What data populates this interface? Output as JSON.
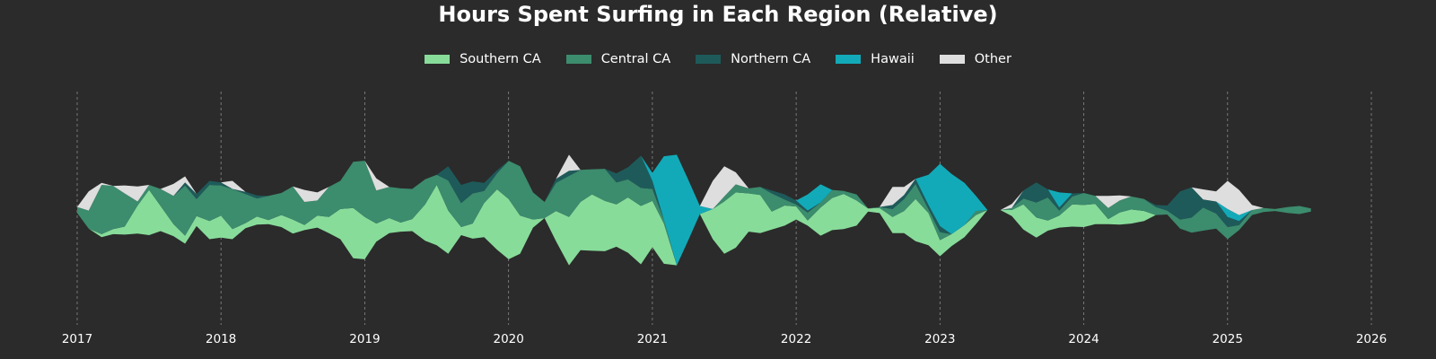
{
  "chart_data": {
    "type": "area",
    "subtype": "streamgraph",
    "title": "Hours Spent Surfing in Each Region (Relative)",
    "xlabel": "",
    "ylabel": "",
    "xlim": [
      2017,
      2026
    ],
    "x_ticks": [
      "2017",
      "2018",
      "2019",
      "2020",
      "2021",
      "2022",
      "2023",
      "2024",
      "2025",
      "2026"
    ],
    "grid": "vertical-dashed",
    "y_axis_visible": false,
    "legend_position": "top-center",
    "x": [
      2017.0,
      2017.08,
      2017.17,
      2017.25,
      2017.33,
      2017.42,
      2017.5,
      2017.58,
      2017.67,
      2017.75,
      2017.83,
      2017.92,
      2018.0,
      2018.08,
      2018.17,
      2018.25,
      2018.33,
      2018.42,
      2018.5,
      2018.58,
      2018.67,
      2018.75,
      2018.83,
      2018.92,
      2019.0,
      2019.08,
      2019.17,
      2019.25,
      2019.33,
      2019.42,
      2019.5,
      2019.58,
      2019.67,
      2019.75,
      2019.83,
      2019.92,
      2020.0,
      2020.08,
      2020.17,
      2020.25,
      2020.33,
      2020.42,
      2020.5,
      2020.58,
      2020.67,
      2020.75,
      2020.83,
      2020.92,
      2021.0,
      2021.08,
      2021.17,
      2021.25,
      2021.33,
      2021.42,
      2021.5,
      2021.58,
      2021.67,
      2021.75,
      2021.83,
      2021.92,
      2022.0,
      2022.08,
      2022.17,
      2022.25,
      2022.33,
      2022.42,
      2022.5,
      2022.58,
      2022.67,
      2022.75,
      2022.83,
      2022.92,
      2023.0,
      2023.08,
      2023.17,
      2023.25,
      2023.33,
      2023.42,
      2023.5,
      2023.58,
      2023.67,
      2023.75,
      2023.83,
      2023.92,
      2024.0,
      2024.08,
      2024.17,
      2024.25,
      2024.33,
      2024.42,
      2024.5,
      2024.58,
      2024.67,
      2024.75,
      2024.83,
      2024.92,
      2025.0,
      2025.08,
      2025.17,
      2025.25,
      2025.33,
      2025.42,
      2025.5,
      2025.58
    ],
    "series": [
      {
        "name": "Southern CA",
        "color": "#88dc9a",
        "values": [
          0.0,
          0.0,
          0.3,
          0.5,
          0.8,
          2.8,
          4.5,
          2.5,
          1.2,
          0.8,
          1.0,
          1.8,
          2.2,
          1.0,
          0.5,
          0.8,
          0.4,
          1.2,
          1.4,
          0.5,
          1.2,
          1.6,
          3.0,
          5.0,
          4.2,
          1.8,
          1.5,
          0.9,
          1.2,
          3.6,
          6.0,
          4.3,
          0.8,
          1.5,
          3.4,
          6.0,
          6.0,
          3.8,
          0.8,
          0.0,
          3.0,
          4.8,
          4.8,
          5.6,
          5.0,
          4.2,
          5.5,
          5.8,
          4.6,
          4.0,
          0.0,
          0.0,
          0.0,
          3.0,
          5.2,
          5.5,
          3.8,
          3.8,
          1.8,
          2.0,
          1.3,
          0.5,
          2.8,
          3.2,
          3.5,
          2.5,
          0.3,
          0.5,
          1.6,
          2.2,
          4.2,
          3.2,
          1.6,
          1.2,
          1.2,
          0.9,
          0.0,
          0.0,
          0.6,
          2.5,
          2.0,
          1.0,
          1.2,
          2.2,
          2.2,
          2.0,
          0.5,
          1.2,
          1.4,
          1.0,
          0.0,
          0.0,
          0.0,
          0.0,
          0.0,
          0.0,
          0.0,
          0.0,
          0.0,
          0.0,
          0.0,
          0.0,
          0.0,
          0.0
        ]
      },
      {
        "name": "Central CA",
        "color": "#3c8c6e",
        "values": [
          0.6,
          1.8,
          4.9,
          4.3,
          3.3,
          0.4,
          0.5,
          1.7,
          2.8,
          5.0,
          1.7,
          3.6,
          3.0,
          4.0,
          2.9,
          1.8,
          2.4,
          2.2,
          3.3,
          2.3,
          1.5,
          3.0,
          2.8,
          4.6,
          5.6,
          3.3,
          3.1,
          3.4,
          3.0,
          2.5,
          1.0,
          3.0,
          2.4,
          3.0,
          1.2,
          1.6,
          3.8,
          4.9,
          2.7,
          1.6,
          2.8,
          4.1,
          3.2,
          2.5,
          3.2,
          2.2,
          1.8,
          1.8,
          1.2,
          0.4,
          0.0,
          0.0,
          0.0,
          0.0,
          0.5,
          0.8,
          0.5,
          0.8,
          1.8,
          0.6,
          0.2,
          0.8,
          0.5,
          0.8,
          0.3,
          0.6,
          0.0,
          0.1,
          0.8,
          1.2,
          1.5,
          0.4,
          0.8,
          0.0,
          0.0,
          0.4,
          0.0,
          0.0,
          0.2,
          0.6,
          1.5,
          2.3,
          0.5,
          0.8,
          1.2,
          0.8,
          1.1,
          1.2,
          1.3,
          1.2,
          0.8,
          0.4,
          0.9,
          1.5,
          2.3,
          1.5,
          1.2,
          0.5,
          0.5,
          0.4,
          0.2,
          0.6,
          0.8,
          0.3
        ]
      },
      {
        "name": "Northern CA",
        "color": "#1e5a5a",
        "values": [
          0.0,
          0.0,
          0.0,
          0.0,
          0.0,
          0.0,
          0.0,
          0.0,
          0.0,
          0.3,
          0.5,
          0.4,
          0.3,
          0.0,
          0.2,
          0.3,
          0.0,
          0.0,
          0.0,
          0.0,
          0.0,
          0.0,
          0.0,
          0.0,
          0.0,
          0.0,
          0.0,
          0.0,
          0.0,
          0.0,
          0.0,
          1.4,
          1.8,
          1.2,
          0.8,
          0.3,
          0.0,
          0.0,
          0.0,
          0.0,
          0.4,
          0.5,
          0.0,
          0.0,
          0.0,
          0.9,
          1.2,
          3.2,
          0.8,
          0.0,
          0.0,
          0.0,
          0.0,
          0.0,
          0.0,
          0.0,
          0.0,
          0.0,
          0.3,
          0.5,
          0.4,
          0.2,
          0.0,
          0.0,
          0.0,
          0.0,
          0.0,
          0.0,
          0.4,
          0.4,
          0.5,
          0.4,
          0.6,
          0.0,
          0.0,
          0.0,
          0.0,
          0.0,
          0.0,
          0.8,
          2.0,
          0.8,
          0.3,
          0.3,
          0.0,
          0.0,
          0.0,
          0.0,
          0.0,
          0.0,
          0.2,
          0.5,
          2.8,
          3.0,
          0.8,
          1.2,
          1.0,
          0.4,
          0.0,
          0.0,
          0.0,
          0.0,
          0.0,
          0.0
        ]
      },
      {
        "name": "Hawaii",
        "color": "#12aab8",
        "values": [
          0.0,
          0.0,
          0.0,
          0.0,
          0.0,
          0.0,
          0.0,
          0.0,
          0.0,
          0.0,
          0.0,
          0.0,
          0.0,
          0.0,
          0.0,
          0.0,
          0.0,
          0.0,
          0.0,
          0.0,
          0.0,
          0.0,
          0.0,
          0.0,
          0.0,
          0.0,
          0.0,
          0.0,
          0.0,
          0.0,
          0.0,
          0.0,
          0.0,
          0.0,
          0.0,
          0.0,
          0.0,
          0.0,
          0.0,
          0.0,
          0.0,
          0.0,
          0.0,
          0.0,
          0.0,
          0.0,
          0.0,
          0.0,
          0.8,
          6.3,
          11.0,
          6.0,
          0.8,
          0.0,
          0.0,
          0.0,
          0.0,
          0.0,
          0.0,
          0.0,
          0.0,
          1.6,
          1.8,
          0.0,
          0.0,
          0.0,
          0.0,
          0.0,
          0.0,
          0.0,
          0.0,
          3.0,
          6.2,
          6.0,
          4.2,
          1.5,
          0.0,
          0.0,
          0.0,
          0.0,
          0.0,
          0.0,
          1.5,
          0.0,
          0.0,
          0.0,
          0.0,
          0.0,
          0.0,
          0.0,
          0.0,
          0.0,
          0.0,
          0.0,
          0.0,
          0.0,
          0.8,
          0.6,
          0.0,
          0.0,
          0.0,
          0.0,
          0.0,
          0.0
        ]
      },
      {
        "name": "Other",
        "color": "#dedede",
        "values": [
          0.0,
          1.9,
          0.2,
          0.0,
          0.8,
          1.5,
          0.0,
          0.0,
          1.2,
          0.6,
          0.0,
          0.0,
          0.0,
          0.8,
          0.0,
          0.0,
          0.0,
          0.0,
          0.0,
          1.2,
          0.8,
          0.0,
          0.0,
          0.0,
          0.0,
          1.2,
          0.0,
          0.0,
          0.0,
          0.0,
          0.0,
          0.0,
          0.0,
          0.0,
          0.0,
          0.0,
          0.0,
          0.0,
          0.0,
          0.0,
          0.0,
          1.6,
          0.0,
          0.0,
          0.0,
          0.0,
          0.0,
          0.0,
          0.0,
          0.0,
          0.0,
          0.0,
          0.0,
          2.8,
          3.0,
          1.2,
          0.0,
          0.0,
          0.0,
          0.0,
          0.0,
          0.0,
          0.0,
          0.0,
          0.0,
          0.0,
          0.0,
          0.0,
          1.8,
          0.8,
          0.0,
          0.0,
          0.0,
          0.0,
          0.0,
          0.0,
          0.0,
          0.0,
          0.4,
          0.0,
          0.0,
          0.0,
          0.0,
          0.0,
          0.0,
          0.0,
          1.2,
          0.5,
          0.0,
          0.0,
          0.0,
          0.0,
          0.0,
          0.0,
          1.0,
          1.0,
          2.8,
          2.5,
          0.5,
          0.0,
          0.0,
          0.0,
          0.0,
          0.0
        ]
      }
    ]
  }
}
